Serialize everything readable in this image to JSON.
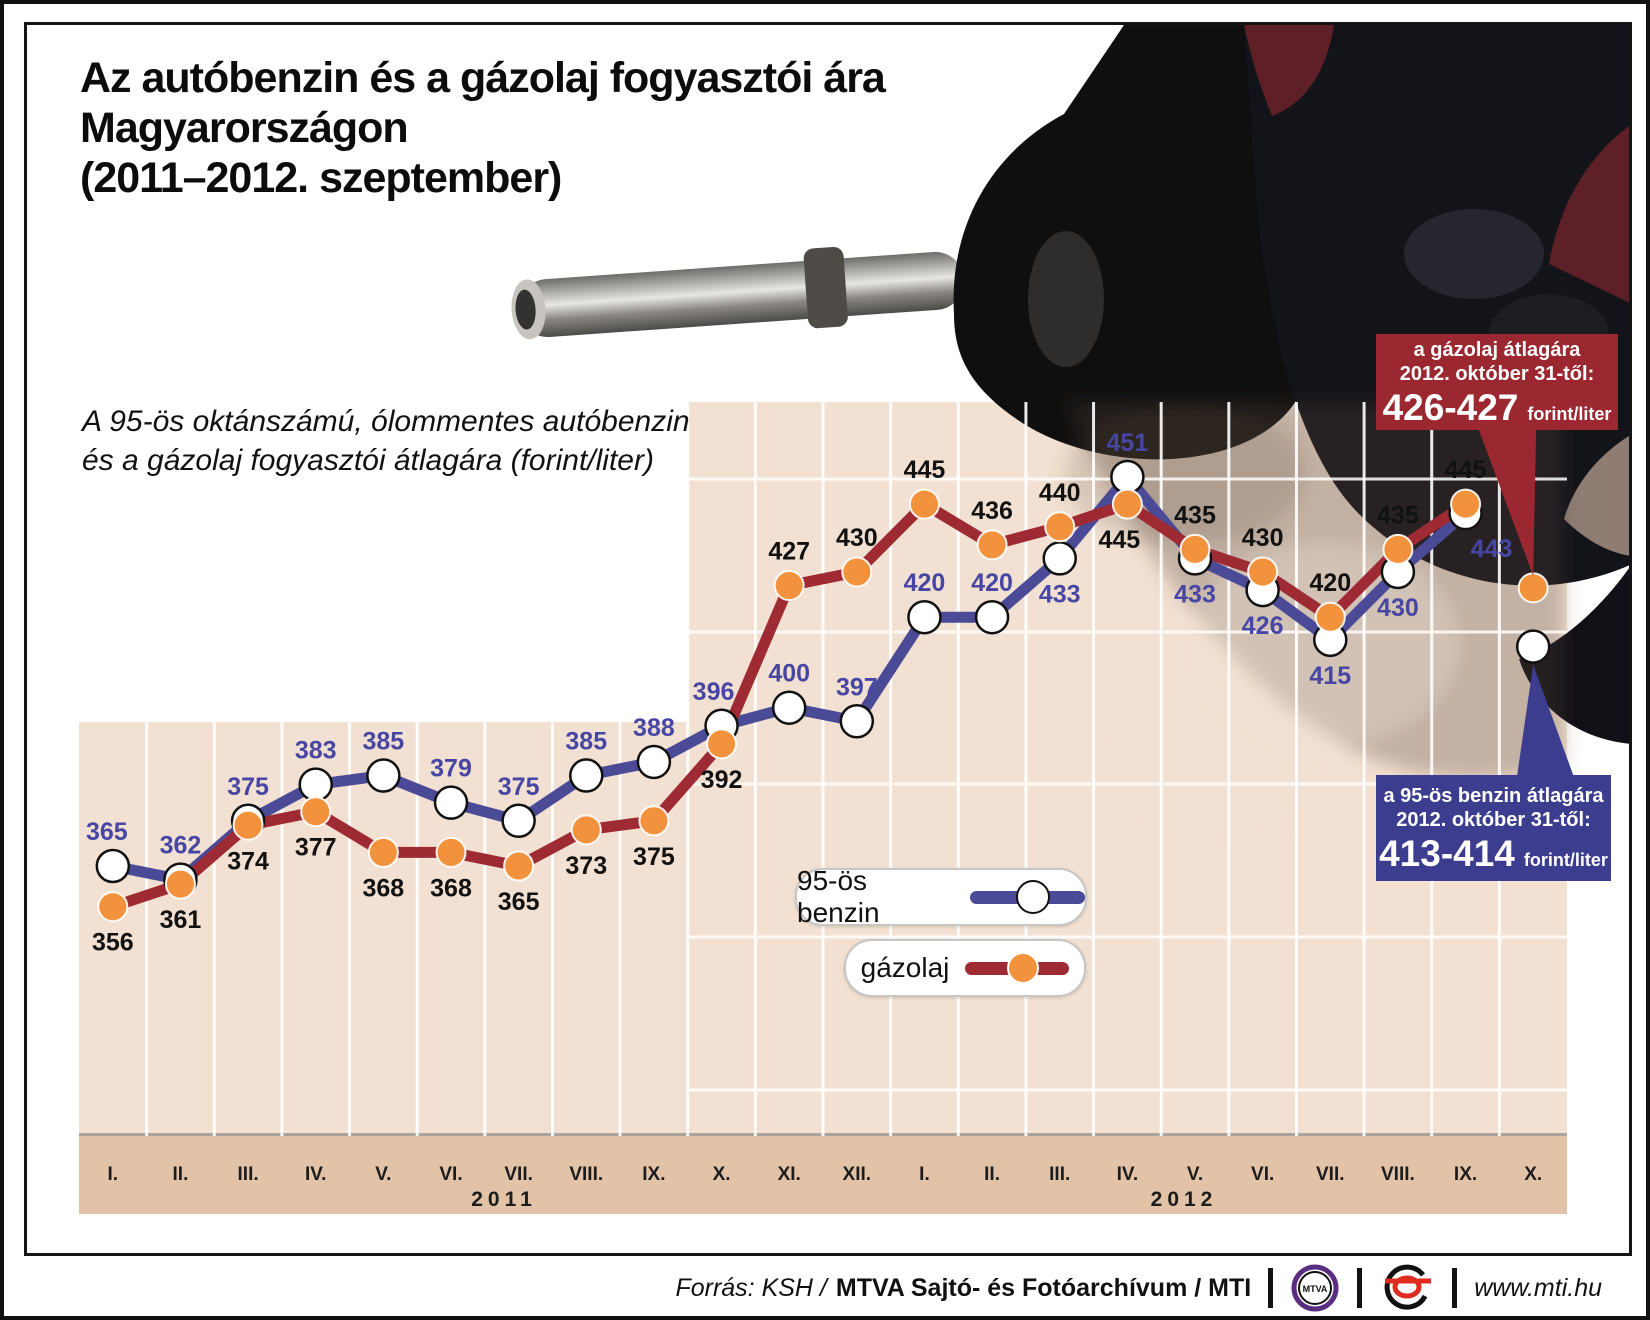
{
  "title": {
    "line1": "Az autóbenzin és a gázolaj fogyasztói ára",
    "line2": "Magyarországon",
    "line3": "(2011–2012. szeptember)"
  },
  "subtitle": {
    "line1": "A 95-ös oktánszámú, ólommentes autóbenzin",
    "line2": "és a gázolaj fogyasztói átlagára (forint/liter)"
  },
  "chart_data": {
    "type": "line",
    "unit": "forint/liter",
    "months": [
      "I.",
      "II.",
      "III.",
      "IV.",
      "V.",
      "VI.",
      "VII.",
      "VIII.",
      "IX.",
      "X.",
      "XI.",
      "XII.",
      "I.",
      "II.",
      "III.",
      "IV.",
      "V.",
      "VI.",
      "VII.",
      "VIII.",
      "IX.",
      "X."
    ],
    "years": [
      "2011",
      "2012"
    ],
    "ylim": [
      300,
      465
    ],
    "grid": true,
    "legend_position": "inside-bottom",
    "series": [
      {
        "name": "95-ös benzin",
        "color": "#4a4a96",
        "marker": "white-circle",
        "label_color": "#4747a3",
        "values": [
          365,
          362,
          375,
          383,
          385,
          379,
          375,
          385,
          388,
          396,
          400,
          397,
          420,
          420,
          433,
          451,
          433,
          426,
          415,
          430,
          443
        ],
        "label_sides": [
          "above",
          "above",
          "above",
          "above",
          "above",
          "above",
          "above",
          "above",
          "above",
          "above",
          "above",
          "above",
          "above",
          "above",
          "below",
          "above",
          "below",
          "below",
          "below",
          "below",
          "below"
        ],
        "october_point": 413.5
      },
      {
        "name": "gázolaj",
        "color": "#9e2a33",
        "marker": "orange-circle",
        "label_color": "#111111",
        "values": [
          356,
          361,
          374,
          377,
          368,
          368,
          365,
          373,
          375,
          392,
          427,
          430,
          445,
          436,
          440,
          445,
          435,
          430,
          420,
          435,
          445
        ],
        "label_sides": [
          "below",
          "below",
          "below",
          "below",
          "below",
          "below",
          "below",
          "below",
          "below",
          "below",
          "above",
          "above",
          "above",
          "above",
          "above",
          "below",
          "above",
          "above",
          "above",
          "above",
          "above"
        ],
        "october_point": 426.5
      }
    ]
  },
  "legend": {
    "items": [
      {
        "label": "95-ös benzin"
      },
      {
        "label": "gázolaj"
      }
    ]
  },
  "callouts": {
    "gazolaj": {
      "line1": "a gázolaj átlagára",
      "line2": "2012. október 31-től:",
      "value": "426-427",
      "unit": "forint/liter"
    },
    "benzin": {
      "line1": "a 95-ös benzin átlagára",
      "line2": "2012. október 31-től:",
      "value": "413-414",
      "unit": "forint/liter"
    }
  },
  "footer": {
    "source_italic": "Forrás: KSH /",
    "source_bold": "MTVA Sajtó- és Fotóarchívum / MTI",
    "site": "www.mti.hu",
    "mtva_text": "MTVA"
  }
}
